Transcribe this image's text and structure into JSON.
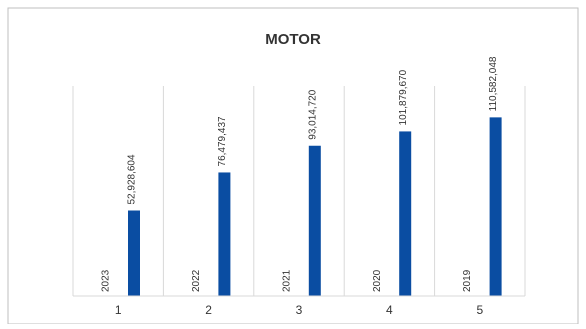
{
  "chart_data": {
    "type": "bar",
    "title": "MOTOR",
    "categories": [
      "1",
      "2",
      "3",
      "4",
      "5"
    ],
    "series": [
      {
        "values": [
          52928604,
          76479437,
          93014720,
          101879670,
          110582048
        ],
        "data_labels": [
          "52,928,604",
          "76,479,437",
          "93,014,720",
          "101,879,670",
          "110,582,048"
        ],
        "inner_labels": [
          "2023",
          "2022",
          "2021",
          "2020",
          "2019"
        ],
        "color": "#0A4DA2"
      }
    ],
    "ylim": [
      0,
      130000000
    ],
    "grid": "vertical-category-separators",
    "legend": "none"
  }
}
